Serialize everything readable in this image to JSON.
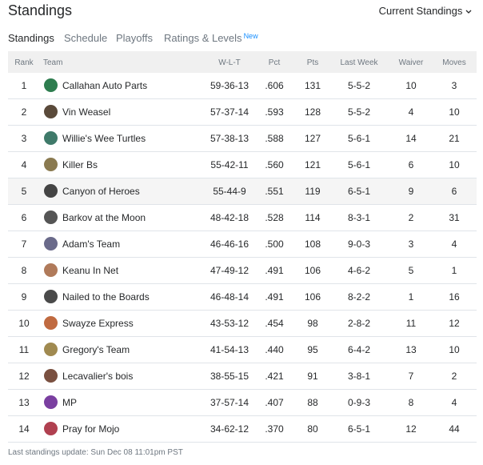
{
  "header": {
    "title": "Standings",
    "dropdown": "Current Standings"
  },
  "tabs": [
    "Standings",
    "Schedule",
    "Playoffs",
    "Ratings & Levels"
  ],
  "tab_badge": "New",
  "table": {
    "columns": [
      "Rank",
      "Team",
      "W-L-T",
      "Pct",
      "Pts",
      "Last Week",
      "Waiver",
      "Moves"
    ],
    "rows": [
      [
        "1",
        "Callahan Auto Parts",
        "59-36-13",
        ".606",
        "131",
        "5-5-2",
        "10",
        "3"
      ],
      [
        "2",
        "Vin Weasel",
        "57-37-14",
        ".593",
        "128",
        "5-5-2",
        "4",
        "10"
      ],
      [
        "3",
        "Willie's Wee Turtles",
        "57-38-13",
        ".588",
        "127",
        "5-6-1",
        "14",
        "21"
      ],
      [
        "4",
        "Killer Bs",
        "55-42-11",
        ".560",
        "121",
        "5-6-1",
        "6",
        "10"
      ],
      [
        "5",
        "Canyon of Heroes",
        "55-44-9",
        ".551",
        "119",
        "6-5-1",
        "9",
        "6"
      ],
      [
        "6",
        "Barkov at the Moon",
        "48-42-18",
        ".528",
        "114",
        "8-3-1",
        "2",
        "31"
      ],
      [
        "7",
        "Adam's Team",
        "46-46-16",
        ".500",
        "108",
        "9-0-3",
        "3",
        "4"
      ],
      [
        "8",
        "Keanu In Net",
        "47-49-12",
        ".491",
        "106",
        "4-6-2",
        "5",
        "1"
      ],
      [
        "9",
        "Nailed to the Boards",
        "46-48-14",
        ".491",
        "106",
        "8-2-2",
        "1",
        "16"
      ],
      [
        "10",
        "Swayze Express",
        "43-53-12",
        ".454",
        "98",
        "2-8-2",
        "11",
        "12"
      ],
      [
        "11",
        "Gregory's Team",
        "41-54-13",
        ".440",
        "95",
        "6-4-2",
        "13",
        "10"
      ],
      [
        "12",
        "Lecavalier's bois",
        "38-55-15",
        ".421",
        "91",
        "3-8-1",
        "7",
        "2"
      ],
      [
        "13",
        "MP",
        "37-57-14",
        ".407",
        "88",
        "0-9-3",
        "8",
        "4"
      ],
      [
        "14",
        "Pray for Mojo",
        "34-62-12",
        ".370",
        "80",
        "6-5-1",
        "12",
        "44"
      ]
    ]
  },
  "footer": "Last standings update: Sun Dec 08 11:01pm PST"
}
